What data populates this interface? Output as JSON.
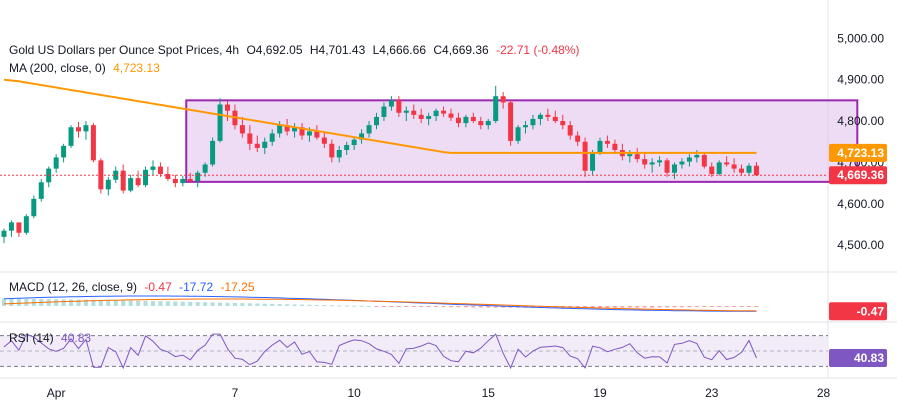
{
  "header": {
    "symbol": "Gold US Dollars per Ounce Spot Prices, 4h",
    "open_label": "O",
    "open": "4,692.05",
    "high_label": "H",
    "high": "4,701.43",
    "low_label": "L",
    "low": "4,666.66",
    "close_label": "C",
    "close": "4,669.36",
    "change": "-22.71 (-0.48%)"
  },
  "ma": {
    "label": "MA (200, close, 0)",
    "value": "4,723.13"
  },
  "macd": {
    "label": "MACD (12, 26, close, 9)",
    "v1": "-0.47",
    "v2": "-17.72",
    "v3": "-17.25"
  },
  "rsi": {
    "label": "RSI (14)",
    "value": "40.83"
  },
  "price_labels": {
    "ma_tag": "4,723.13",
    "close_tag": "4,669.36",
    "macd_tag": "-0.47",
    "rsi_tag": "40.83"
  },
  "colors": {
    "up": "#089981",
    "down": "#f23645",
    "ma": "#ff9800",
    "box_border": "#9c27b0",
    "box_fill": "#e1c4ec",
    "macd_line": "#2962ff",
    "signal_line": "#ff6d00",
    "rsi": "#7e57c2"
  },
  "chart_data": {
    "type": "candlestick",
    "title": "Gold US Dollars per Ounce Spot Prices, 4h",
    "y_axis": {
      "ticks": [
        5000,
        4900,
        4800,
        4700,
        4600,
        4500
      ],
      "tick_labels": [
        "5,000.00",
        "4,900.00",
        "4,800.00",
        "4,700.00",
        "4,600.00",
        "4,500.00"
      ],
      "range": [
        4440,
        5020
      ]
    },
    "x_axis": {
      "ticks": [
        "Apr",
        "7",
        "10",
        "15",
        "19",
        "23",
        "28"
      ],
      "tick_index": [
        7,
        31,
        47,
        65,
        80,
        95,
        110
      ]
    },
    "rectangle": {
      "top": 4850,
      "bottom": 4653,
      "start_index": 25,
      "end_index": 114
    },
    "ohlc": [
      [
        4520,
        4540,
        4505,
        4535
      ],
      [
        4535,
        4560,
        4520,
        4555
      ],
      [
        4555,
        4555,
        4520,
        4530
      ],
      [
        4530,
        4575,
        4525,
        4570
      ],
      [
        4570,
        4620,
        4565,
        4612
      ],
      [
        4612,
        4660,
        4605,
        4652
      ],
      [
        4652,
        4690,
        4640,
        4685
      ],
      [
        4685,
        4720,
        4675,
        4712
      ],
      [
        4712,
        4745,
        4700,
        4740
      ],
      [
        4740,
        4790,
        4735,
        4785
      ],
      [
        4785,
        4798,
        4760,
        4775
      ],
      [
        4775,
        4800,
        4755,
        4790
      ],
      [
        4790,
        4795,
        4700,
        4705
      ],
      [
        4705,
        4710,
        4625,
        4635
      ],
      [
        4635,
        4665,
        4620,
        4658
      ],
      [
        4658,
        4690,
        4650,
        4680
      ],
      [
        4680,
        4695,
        4625,
        4632
      ],
      [
        4632,
        4670,
        4628,
        4662
      ],
      [
        4662,
        4680,
        4640,
        4645
      ],
      [
        4645,
        4690,
        4640,
        4682
      ],
      [
        4682,
        4705,
        4668,
        4690
      ],
      [
        4690,
        4700,
        4665,
        4672
      ],
      [
        4672,
        4690,
        4655,
        4660
      ],
      [
        4660,
        4670,
        4640,
        4650
      ],
      [
        4650,
        4668,
        4642,
        4660
      ],
      [
        4660,
        4675,
        4650,
        4655
      ],
      [
        4655,
        4680,
        4640,
        4675
      ],
      [
        4675,
        4700,
        4665,
        4695
      ],
      [
        4695,
        4760,
        4690,
        4752
      ],
      [
        4752,
        4855,
        4748,
        4840
      ],
      [
        4840,
        4848,
        4800,
        4825
      ],
      [
        4825,
        4840,
        4780,
        4790
      ],
      [
        4790,
        4810,
        4760,
        4770
      ],
      [
        4770,
        4790,
        4730,
        4745
      ],
      [
        4745,
        4765,
        4725,
        4735
      ],
      [
        4735,
        4760,
        4720,
        4750
      ],
      [
        4750,
        4780,
        4740,
        4770
      ],
      [
        4770,
        4800,
        4760,
        4790
      ],
      [
        4790,
        4805,
        4765,
        4775
      ],
      [
        4775,
        4795,
        4760,
        4785
      ],
      [
        4785,
        4795,
        4755,
        4765
      ],
      [
        4765,
        4785,
        4750,
        4775
      ],
      [
        4775,
        4790,
        4755,
        4760
      ],
      [
        4760,
        4775,
        4735,
        4745
      ],
      [
        4745,
        4755,
        4700,
        4712
      ],
      [
        4712,
        4740,
        4700,
        4730
      ],
      [
        4730,
        4750,
        4718,
        4742
      ],
      [
        4742,
        4760,
        4730,
        4755
      ],
      [
        4755,
        4780,
        4745,
        4770
      ],
      [
        4770,
        4800,
        4760,
        4790
      ],
      [
        4790,
        4820,
        4780,
        4810
      ],
      [
        4810,
        4845,
        4800,
        4835
      ],
      [
        4835,
        4860,
        4825,
        4850
      ],
      [
        4850,
        4860,
        4810,
        4820
      ],
      [
        4820,
        4835,
        4800,
        4825
      ],
      [
        4825,
        4840,
        4805,
        4815
      ],
      [
        4815,
        4830,
        4795,
        4805
      ],
      [
        4805,
        4820,
        4790,
        4812
      ],
      [
        4812,
        4830,
        4800,
        4825
      ],
      [
        4825,
        4835,
        4810,
        4818
      ],
      [
        4818,
        4830,
        4800,
        4808
      ],
      [
        4808,
        4820,
        4785,
        4795
      ],
      [
        4795,
        4815,
        4785,
        4810
      ],
      [
        4810,
        4820,
        4795,
        4800
      ],
      [
        4800,
        4810,
        4780,
        4790
      ],
      [
        4790,
        4805,
        4780,
        4800
      ],
      [
        4800,
        4885,
        4795,
        4860
      ],
      [
        4860,
        4870,
        4830,
        4845
      ],
      [
        4845,
        4850,
        4740,
        4752
      ],
      [
        4752,
        4790,
        4745,
        4785
      ],
      [
        4785,
        4800,
        4770,
        4790
      ],
      [
        4790,
        4815,
        4780,
        4805
      ],
      [
        4805,
        4820,
        4790,
        4815
      ],
      [
        4815,
        4830,
        4800,
        4810
      ],
      [
        4810,
        4825,
        4795,
        4800
      ],
      [
        4800,
        4815,
        4780,
        4790
      ],
      [
        4790,
        4800,
        4755,
        4765
      ],
      [
        4765,
        4775,
        4740,
        4750
      ],
      [
        4750,
        4760,
        4665,
        4680
      ],
      [
        4680,
        4730,
        4670,
        4725
      ],
      [
        4725,
        4760,
        4718,
        4752
      ],
      [
        4752,
        4765,
        4735,
        4745
      ],
      [
        4745,
        4755,
        4720,
        4730
      ],
      [
        4730,
        4745,
        4705,
        4715
      ],
      [
        4715,
        4730,
        4700,
        4720
      ],
      [
        4720,
        4735,
        4700,
        4708
      ],
      [
        4708,
        4720,
        4685,
        4695
      ],
      [
        4695,
        4710,
        4675,
        4700
      ],
      [
        4700,
        4715,
        4690,
        4705
      ],
      [
        4705,
        4710,
        4665,
        4675
      ],
      [
        4675,
        4700,
        4660,
        4695
      ],
      [
        4695,
        4710,
        4685,
        4702
      ],
      [
        4702,
        4720,
        4690,
        4712
      ],
      [
        4712,
        4730,
        4700,
        4718
      ],
      [
        4718,
        4725,
        4685,
        4690
      ],
      [
        4690,
        4700,
        4665,
        4672
      ],
      [
        4672,
        4705,
        4668,
        4700
      ],
      [
        4700,
        4715,
        4690,
        4695
      ],
      [
        4695,
        4710,
        4675,
        4685
      ],
      [
        4685,
        4695,
        4668,
        4675
      ],
      [
        4675,
        4698,
        4670,
        4692
      ],
      [
        4692,
        4701,
        4667,
        4669
      ]
    ],
    "ma_200": [
      4900,
      4898,
      4896,
      4893,
      4890,
      4887,
      4884,
      4881,
      4878,
      4875,
      4872,
      4869,
      4866,
      4863,
      4860,
      4857,
      4854,
      4851,
      4848,
      4845,
      4842,
      4839,
      4836,
      4833,
      4830,
      4827,
      4824,
      4821,
      4818,
      4815,
      4812,
      4809,
      4806,
      4803,
      4800,
      4797,
      4794,
      4791,
      4788,
      4785,
      4782,
      4779,
      4776,
      4773,
      4770,
      4767,
      4764,
      4761,
      4758,
      4755,
      4752,
      4749,
      4746,
      4743,
      4740,
      4737,
      4734,
      4731,
      4728,
      4725,
      4723,
      4723,
      4723,
      4723,
      4723,
      4723,
      4723,
      4723,
      4723,
      4723,
      4723,
      4723,
      4723,
      4723,
      4723,
      4723,
      4723,
      4723,
      4723,
      4723,
      4723,
      4723,
      4723,
      4723,
      4723,
      4723,
      4723,
      4723,
      4723,
      4723,
      4723,
      4723,
      4723,
      4723,
      4723,
      4723,
      4723,
      4723,
      4723,
      4723,
      4723,
      4723
    ],
    "macd": {
      "range": [
        -60,
        60
      ],
      "tick_value": -0.47
    },
    "rsi": {
      "range": [
        20,
        80
      ],
      "bands": [
        70,
        30
      ],
      "value": 40.83
    }
  }
}
